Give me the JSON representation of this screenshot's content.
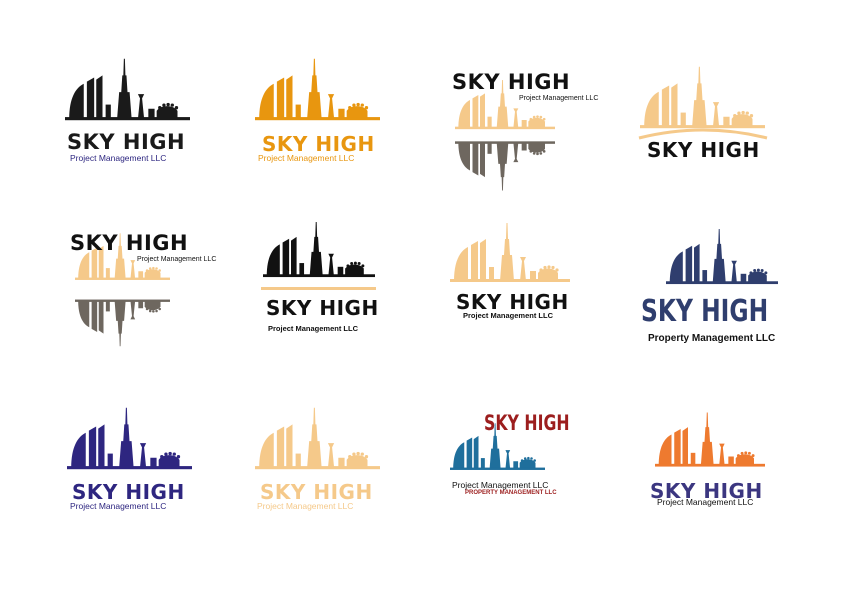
{
  "logos": [
    {
      "title": "SKY HIGH",
      "subtitle": "Project Management LLC",
      "color": "#1a1a1a",
      "subcolor": "#2d2680"
    },
    {
      "title": "SKY HIGH",
      "subtitle": "Project Management LLC",
      "color": "#e8960f"
    },
    {
      "title": "SKY HIGH",
      "subtitle": "Project Management LLC",
      "color": "#f5c98a",
      "reflection": "#6e675f"
    },
    {
      "title": "SKY HIGH",
      "color": "#f5c98a"
    },
    {
      "title": "SKY HIGH",
      "subtitle": "Project Management LLC",
      "color": "#f5c98a",
      "reflection": "#6e675f"
    },
    {
      "title": "SKY HIGH",
      "subtitle": "Project Management LLC",
      "color": "#111111",
      "accent": "#f5c98a"
    },
    {
      "title": "SKY HIGH",
      "subtitle": "Project Management LLC",
      "color": "#f5c98a"
    },
    {
      "title": "SKY HIGH",
      "subtitle": "Property Management LLC",
      "color": "#2f3e6e"
    },
    {
      "title": "SKY HIGH",
      "subtitle": "Project Management LLC",
      "color": "#2e2680"
    },
    {
      "title": "SKY HIGH",
      "subtitle": "Project Management LLC",
      "color": "#f5c98a"
    },
    {
      "title": "SKY HIGH",
      "subtitle": "Project Management LLC",
      "subtitle2": "PROPERTY MANAGEMENT LLC",
      "color": "#1f6f9c",
      "titlecolor": "#9c1e1e"
    },
    {
      "title": "SKY HIGH",
      "subtitle": "Project Management LLC",
      "color": "#ee7a2f",
      "titlecolor": "#3b3680"
    }
  ]
}
